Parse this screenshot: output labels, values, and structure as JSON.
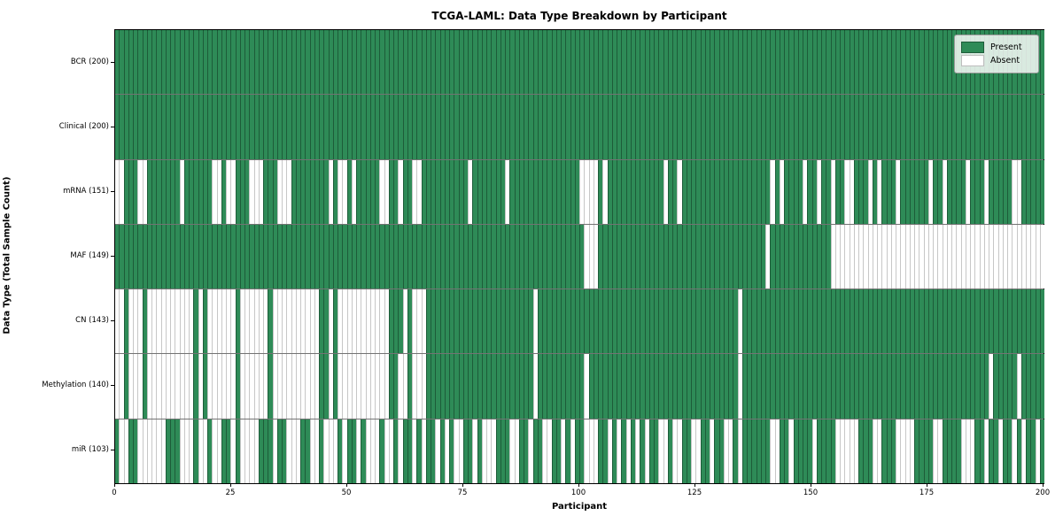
{
  "title": "TCGA-LAML: Data Type Breakdown by Participant",
  "x_axis_label": "Participant",
  "y_axis_label": "Data Type (Total Sample Count)",
  "legend": {
    "items": [
      {
        "label": "Present",
        "color": "#2e8b57",
        "edge": "#1d5c39"
      },
      {
        "label": "Absent",
        "color": "#ffffff",
        "edge": "#bdbdbd"
      }
    ]
  },
  "colors": {
    "present_fill": "#2e8b57",
    "absent_fill": "#ffffff",
    "present_edge": "#1d5c39",
    "absent_edge": "#c7c7c7",
    "row_separator": "rgba(0,0,0,0.55)",
    "plot_border": "#000000"
  },
  "chart_data": {
    "type": "heatmap",
    "title": "TCGA-LAML: Data Type Breakdown by Participant",
    "xlabel": "Participant",
    "ylabel": "Data Type (Total Sample Count)",
    "x_range": [
      0,
      200
    ],
    "x_ticks": [
      0,
      25,
      50,
      75,
      100,
      125,
      150,
      175,
      200
    ],
    "n_participants": 200,
    "legend_position": "upper right",
    "cell_states": {
      "1": "Present",
      "0": "Absent"
    },
    "rows": [
      {
        "label": "BCR (200)",
        "data_type": "BCR",
        "present_count": 200,
        "pattern": "11111111111111111111111111111111111111111111111111111111111111111111111111111111111111111111111111111111111111111111111111111111111111111111111111111111111111111111111111111111111111111111111111111111"
      },
      {
        "label": "Clinical (200)",
        "data_type": "Clinical",
        "present_count": 200,
        "pattern": "11111111111111111111111111111111111111111111111111111111111111111111111111111111111111111111111111111111111111111111111111111111111111111111111111111111111111111111111111111111111111111111111111111111"
      },
      {
        "label": "mRNA (151)",
        "data_type": "mRNA",
        "present_count": 151,
        "pattern": "00111001111111011111100100111000111000111111110100101111100110110011111111110111111101111111111111110000101111111111110110111111111111111111101011110110110110011101011101111110110111101110111110011111"
      },
      {
        "label": "MAF (149)",
        "data_type": "MAF",
        "present_count": 149,
        "pattern": "11111111111111111111111111111111111111111111111111111111111111111111111111111111111111111111111111111000111111111111111111111111111111111111011111111111110000000000000000000000000000000000000000000000"
      },
      {
        "label": "CN (143)",
        "data_type": "CN",
        "present_count": 143,
        "pattern": "00100010000000000101000000100000010000000000110100000000000111010001111111111111111111111101111111111111111111111111111111111111111111011111111111111111111111111111111111111111111111111111111111111111"
      },
      {
        "label": "Methylation (140)",
        "data_type": "Methylation",
        "present_count": 140,
        "pattern": "00100010000000000101000000100000010000000000110100000000000110010001111111111111111111111101111111111011111111111111111111111111111111011111111111111111111111111111111111111111111111111111011111011111"
      },
      {
        "label": "miR (103)",
        "data_type": "miR",
        "present_count": 103,
        "pattern": "10011000000111000100100110100001110110001100100010110100010010110101101010011010001110011011001101011000110101010101100100110011011001011111100110111101111000001110011100001111001111000110110110101101"
      }
    ]
  }
}
